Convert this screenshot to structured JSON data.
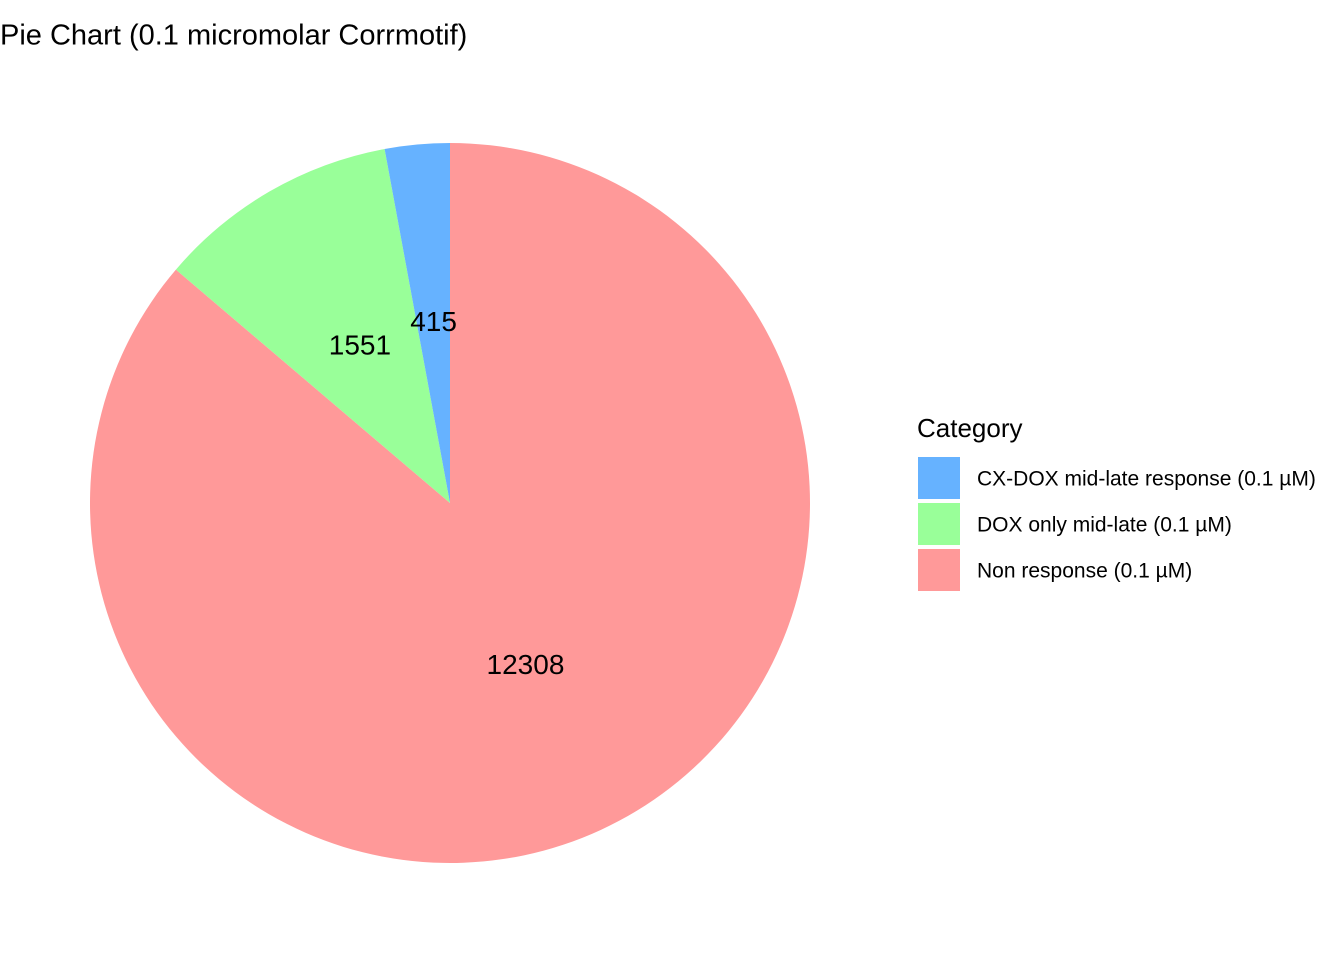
{
  "chart_data": {
    "type": "pie",
    "title": "Pie Chart (0.1 micromolar Corrmotif)",
    "categories": [
      "CX-DOX mid-late response (0.1 µM)",
      "DOX only mid-late (0.1 µM)",
      "Non response (0.1 µM)"
    ],
    "values": [
      415,
      1551,
      12308
    ],
    "colors": [
      "#66b2ff",
      "#99ff99",
      "#ff9999"
    ],
    "legend_title": "Category"
  }
}
